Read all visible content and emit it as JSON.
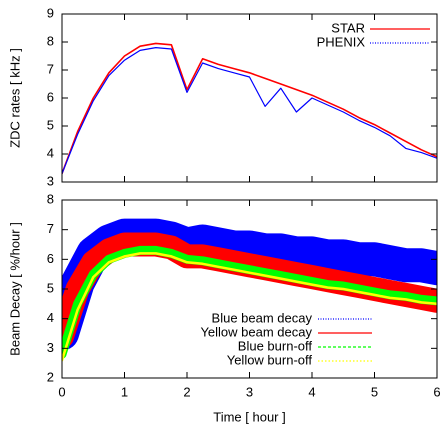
{
  "chart_data": [
    {
      "type": "line",
      "ylabel": "ZDC rates [ kHz ]",
      "x": [
        0,
        0.25,
        0.5,
        0.75,
        1,
        1.25,
        1.5,
        1.75,
        2,
        2.25,
        2.5,
        2.75,
        3,
        3.25,
        3.5,
        3.75,
        4,
        4.25,
        4.5,
        4.75,
        5,
        5.25,
        5.5,
        5.75,
        6
      ],
      "xlim": [
        0,
        6
      ],
      "ylim": [
        3,
        9
      ],
      "yticks": [
        3,
        4,
        5,
        6,
        7,
        8,
        9
      ],
      "legend": "upper right",
      "series": [
        {
          "name": "STAR",
          "color": "#ff0000",
          "values": [
            3.3,
            4.8,
            6.0,
            6.9,
            7.5,
            7.85,
            7.95,
            7.9,
            6.3,
            7.4,
            7.2,
            7.05,
            6.9,
            6.7,
            6.5,
            6.3,
            6.1,
            5.85,
            5.6,
            5.3,
            5.05,
            4.75,
            4.45,
            4.15,
            3.9
          ]
        },
        {
          "name": "PHENIX",
          "color": "#0000ff",
          "values": [
            3.3,
            4.7,
            5.9,
            6.8,
            7.35,
            7.7,
            7.8,
            7.75,
            6.2,
            7.25,
            7.05,
            6.9,
            6.75,
            5.7,
            6.35,
            5.5,
            6.0,
            5.75,
            5.5,
            5.2,
            4.95,
            4.65,
            4.2,
            4.05,
            3.85
          ]
        }
      ]
    },
    {
      "type": "line",
      "ylabel": "Beam Decay [ %/hour ]",
      "xlabel": "Time [ hour ]",
      "x": [
        0,
        0.25,
        0.5,
        0.75,
        1,
        1.25,
        1.5,
        1.75,
        2,
        2.25,
        2.5,
        2.75,
        3,
        3.25,
        3.5,
        3.75,
        4,
        4.25,
        4.5,
        4.75,
        5,
        5.25,
        5.5,
        5.75,
        6
      ],
      "xlim": [
        0,
        6
      ],
      "xticks": [
        0,
        1,
        2,
        3,
        4,
        5,
        6
      ],
      "ylim": [
        2,
        8
      ],
      "yticks": [
        2,
        3,
        4,
        5,
        6,
        7,
        8
      ],
      "legend": "lower center",
      "series": [
        {
          "name": "Blue beam decay",
          "color": "#0000ff",
          "values": [
            3.5,
            5.2,
            6.2,
            6.6,
            6.8,
            6.8,
            6.8,
            6.7,
            6.5,
            6.6,
            6.5,
            6.4,
            6.4,
            6.3,
            6.3,
            6.2,
            6.2,
            6.1,
            6.1,
            6.0,
            6.0,
            5.9,
            5.8,
            5.8,
            5.7
          ]
        },
        {
          "name": "Yellow beam decay",
          "color": "#ff0000",
          "values": [
            3.4,
            5.0,
            5.9,
            6.3,
            6.5,
            6.5,
            6.5,
            6.4,
            6.1,
            6.1,
            6.0,
            5.9,
            5.8,
            5.7,
            5.6,
            5.5,
            5.4,
            5.3,
            5.2,
            5.1,
            5.0,
            4.9,
            4.8,
            4.7,
            4.6
          ]
        },
        {
          "name": "Blue burn-off",
          "color": "#00ff00",
          "values": [
            2.8,
            4.5,
            5.5,
            6.0,
            6.2,
            6.3,
            6.3,
            6.2,
            6.0,
            5.95,
            5.85,
            5.75,
            5.65,
            5.55,
            5.45,
            5.35,
            5.25,
            5.15,
            5.1,
            5.0,
            4.9,
            4.8,
            4.75,
            4.65,
            4.6
          ]
        },
        {
          "name": "Yellow burn-off",
          "color": "#ffff00",
          "values": [
            2.6,
            4.3,
            5.4,
            5.9,
            6.1,
            6.2,
            6.2,
            6.1,
            5.9,
            5.85,
            5.75,
            5.65,
            5.55,
            5.45,
            5.35,
            5.25,
            5.15,
            5.05,
            5.0,
            4.9,
            4.8,
            4.7,
            4.65,
            4.55,
            4.5
          ]
        }
      ]
    }
  ]
}
